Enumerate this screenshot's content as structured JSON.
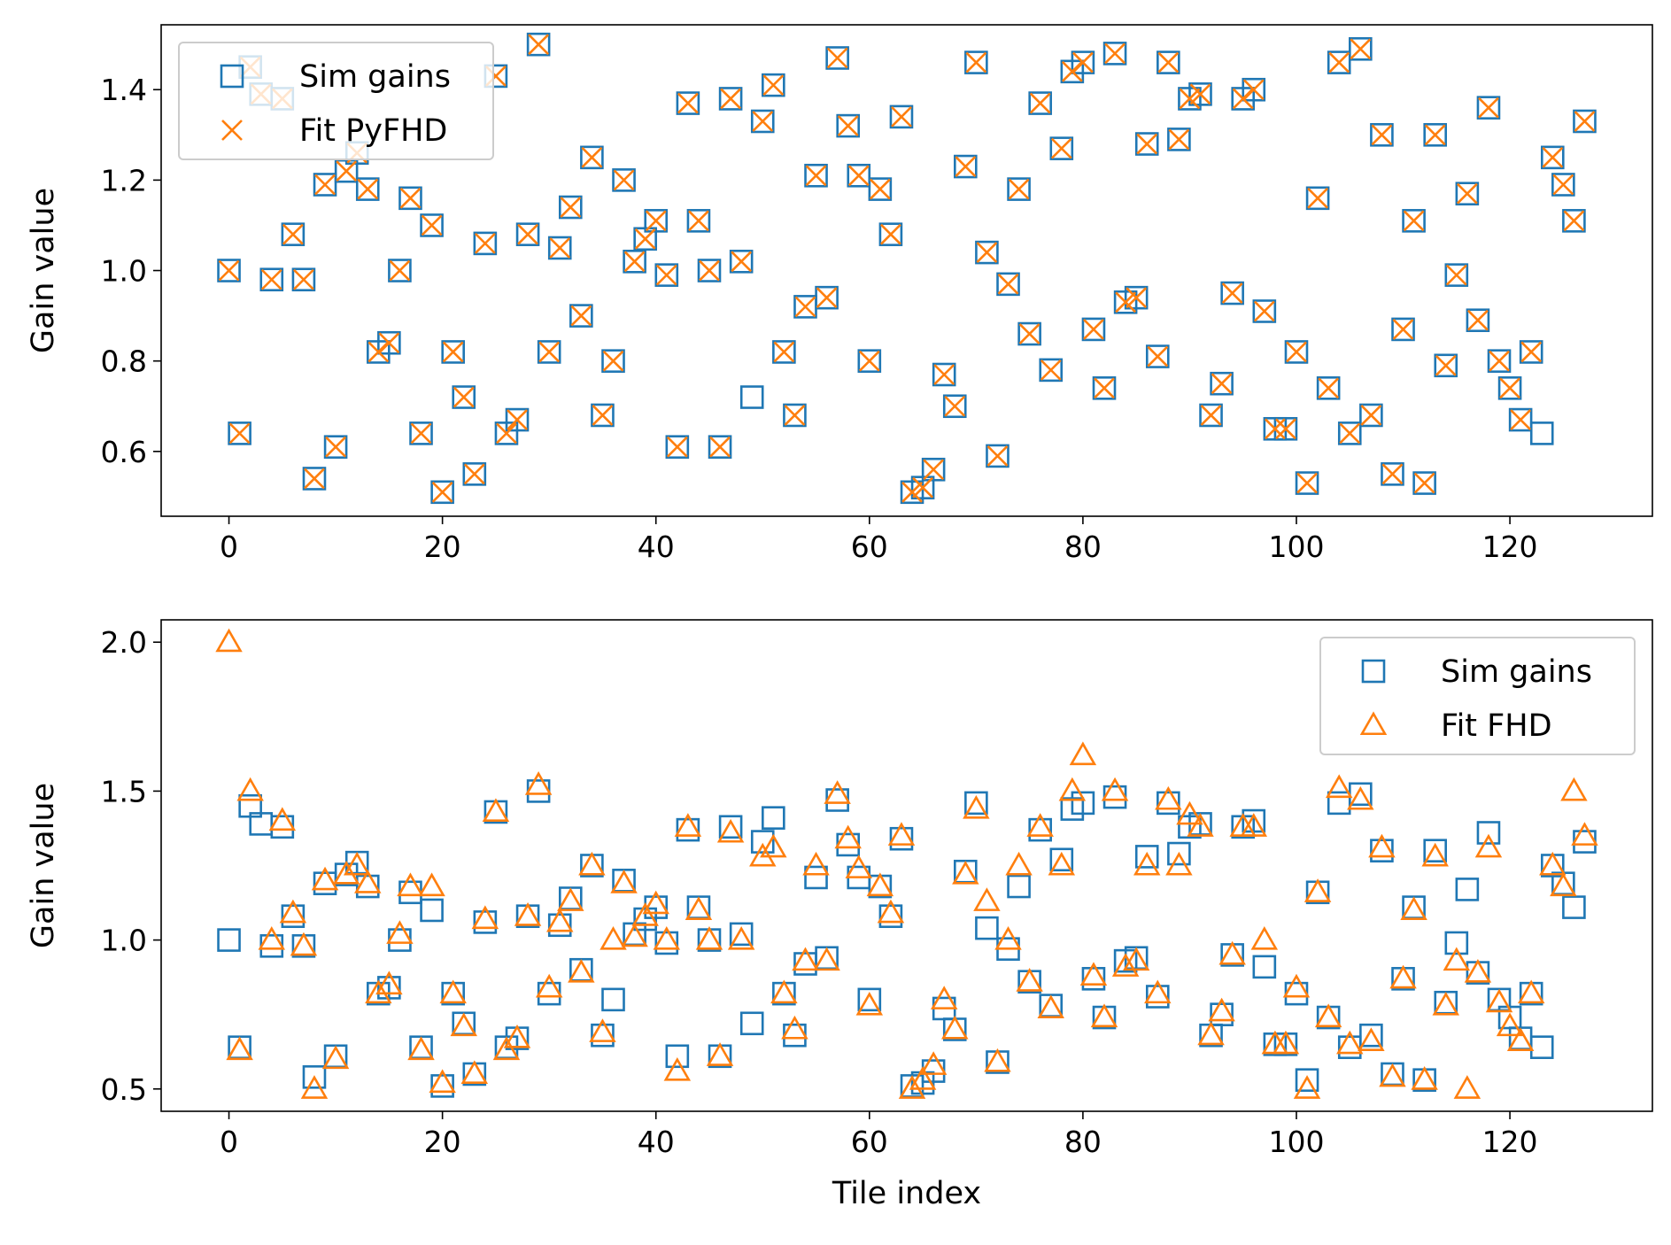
{
  "colors": {
    "sim": "#1f77b4",
    "fit": "#ff7f0e",
    "axis": "#000000",
    "legend_border": "#cccccc"
  },
  "chart_data": [
    {
      "type": "scatter",
      "title": "",
      "xlabel": "",
      "ylabel": "Gain value",
      "xlim": [
        -6.35,
        133.35
      ],
      "ylim": [
        0.4567,
        1.5434
      ],
      "xticks": [
        0,
        20,
        40,
        60,
        80,
        100,
        120
      ],
      "xtick_labels": [
        "0",
        "20",
        "40",
        "60",
        "80",
        "100",
        "120"
      ],
      "yticks": [
        0.6,
        0.8,
        1.0,
        1.2,
        1.4
      ],
      "ytick_labels": [
        "0.6",
        "0.8",
        "1.0",
        "1.2",
        "1.4"
      ],
      "legend_position": "upper-left",
      "series": [
        {
          "name": "Sim gains",
          "marker": "square",
          "color": "#1f77b4",
          "x": [
            0,
            1,
            2,
            3,
            4,
            5,
            6,
            7,
            8,
            9,
            10,
            11,
            12,
            13,
            14,
            15,
            16,
            17,
            18,
            19,
            20,
            21,
            22,
            23,
            24,
            25,
            26,
            27,
            28,
            29,
            30,
            31,
            32,
            33,
            34,
            35,
            36,
            37,
            38,
            39,
            40,
            41,
            42,
            43,
            44,
            45,
            46,
            47,
            48,
            49,
            50,
            51,
            52,
            53,
            54,
            55,
            56,
            57,
            58,
            59,
            60,
            61,
            62,
            63,
            64,
            65,
            66,
            67,
            68,
            69,
            70,
            71,
            72,
            73,
            74,
            75,
            76,
            77,
            78,
            79,
            80,
            81,
            82,
            83,
            84,
            85,
            86,
            87,
            88,
            89,
            90,
            91,
            92,
            93,
            94,
            95,
            96,
            97,
            98,
            99,
            100,
            101,
            102,
            103,
            104,
            105,
            106,
            107,
            108,
            109,
            110,
            111,
            112,
            113,
            114,
            115,
            116,
            117,
            118,
            119,
            120,
            121,
            122,
            123,
            124,
            125,
            126,
            127
          ],
          "y": [
            1.0,
            0.64,
            1.45,
            1.39,
            0.98,
            1.38,
            1.08,
            0.98,
            0.54,
            1.19,
            0.61,
            1.22,
            1.26,
            1.18,
            0.82,
            0.84,
            1.0,
            1.16,
            0.64,
            1.1,
            0.51,
            0.82,
            0.72,
            0.55,
            1.06,
            1.43,
            0.64,
            0.67,
            1.08,
            1.5,
            0.82,
            1.05,
            1.14,
            0.9,
            1.25,
            0.68,
            0.8,
            1.2,
            1.02,
            1.07,
            1.11,
            0.99,
            0.61,
            1.37,
            1.11,
            1.0,
            0.61,
            1.38,
            1.02,
            0.72,
            1.33,
            1.41,
            0.82,
            0.68,
            0.92,
            1.21,
            0.94,
            1.47,
            1.32,
            1.21,
            0.8,
            1.18,
            1.08,
            1.34,
            0.51,
            0.52,
            0.56,
            0.77,
            0.7,
            1.23,
            1.46,
            1.04,
            0.59,
            0.97,
            1.18,
            0.86,
            1.37,
            0.78,
            1.27,
            1.44,
            1.46,
            0.87,
            0.74,
            1.48,
            0.93,
            0.94,
            1.28,
            0.81,
            1.46,
            1.29,
            1.38,
            1.39,
            0.68,
            0.75,
            0.95,
            1.38,
            1.4,
            0.91,
            0.65,
            0.65,
            0.82,
            0.53,
            1.16,
            0.74,
            1.46,
            0.64,
            1.49,
            0.68,
            1.3,
            0.55,
            0.87,
            1.11,
            0.53,
            1.3,
            0.79,
            0.99,
            1.17,
            0.89,
            1.36,
            0.8,
            0.74,
            0.67,
            0.82,
            0.64,
            1.25,
            1.19,
            1.11,
            1.33
          ]
        },
        {
          "name": "Fit PyFHD",
          "marker": "x",
          "color": "#ff7f0e",
          "x": [
            0,
            1,
            2,
            3,
            4,
            5,
            6,
            7,
            8,
            9,
            10,
            11,
            12,
            13,
            14,
            15,
            16,
            17,
            18,
            19,
            20,
            21,
            22,
            23,
            24,
            25,
            26,
            27,
            28,
            29,
            30,
            31,
            32,
            33,
            34,
            35,
            36,
            37,
            38,
            39,
            40,
            41,
            42,
            43,
            44,
            45,
            46,
            47,
            48,
            50,
            51,
            52,
            53,
            54,
            55,
            56,
            57,
            58,
            59,
            60,
            61,
            62,
            63,
            64,
            65,
            66,
            67,
            68,
            69,
            70,
            71,
            72,
            73,
            74,
            75,
            76,
            77,
            78,
            79,
            80,
            81,
            82,
            83,
            84,
            85,
            86,
            87,
            88,
            89,
            90,
            91,
            92,
            93,
            94,
            95,
            96,
            97,
            98,
            99,
            100,
            101,
            102,
            103,
            104,
            105,
            106,
            107,
            108,
            109,
            110,
            111,
            112,
            113,
            114,
            115,
            116,
            117,
            118,
            119,
            120,
            121,
            122,
            124,
            125,
            126,
            127
          ],
          "y": [
            1.0,
            0.64,
            1.45,
            1.39,
            0.98,
            1.38,
            1.08,
            0.98,
            0.54,
            1.19,
            0.61,
            1.22,
            1.26,
            1.18,
            0.82,
            0.84,
            1.0,
            1.16,
            0.64,
            1.1,
            0.51,
            0.82,
            0.72,
            0.55,
            1.06,
            1.43,
            0.64,
            0.67,
            1.08,
            1.5,
            0.82,
            1.05,
            1.14,
            0.9,
            1.25,
            0.68,
            0.8,
            1.2,
            1.02,
            1.07,
            1.11,
            0.99,
            0.61,
            1.37,
            1.11,
            1.0,
            0.61,
            1.38,
            1.02,
            1.33,
            1.41,
            0.82,
            0.68,
            0.92,
            1.21,
            0.94,
            1.47,
            1.32,
            1.21,
            0.8,
            1.18,
            1.08,
            1.34,
            0.51,
            0.52,
            0.56,
            0.77,
            0.7,
            1.23,
            1.46,
            1.04,
            0.59,
            0.97,
            1.18,
            0.86,
            1.37,
            0.78,
            1.27,
            1.44,
            1.46,
            0.87,
            0.74,
            1.48,
            0.93,
            0.94,
            1.28,
            0.81,
            1.46,
            1.29,
            1.38,
            1.39,
            0.68,
            0.75,
            0.95,
            1.38,
            1.4,
            0.91,
            0.65,
            0.65,
            0.82,
            0.53,
            1.16,
            0.74,
            1.46,
            0.64,
            1.49,
            0.68,
            1.3,
            0.55,
            0.87,
            1.11,
            0.53,
            1.3,
            0.79,
            0.99,
            1.17,
            0.89,
            1.36,
            0.8,
            0.74,
            0.67,
            0.82,
            1.25,
            1.19,
            1.11,
            1.33
          ]
        }
      ]
    },
    {
      "type": "scatter",
      "title": "",
      "xlabel": "Tile index",
      "ylabel": "Gain value",
      "xlim": [
        -6.35,
        133.35
      ],
      "ylim": [
        0.425,
        2.075
      ],
      "xticks": [
        0,
        20,
        40,
        60,
        80,
        100,
        120
      ],
      "xtick_labels": [
        "0",
        "20",
        "40",
        "60",
        "80",
        "100",
        "120"
      ],
      "yticks": [
        0.5,
        1.0,
        1.5,
        2.0
      ],
      "ytick_labels": [
        "0.5",
        "1.0",
        "1.5",
        "2.0"
      ],
      "legend_position": "upper-right",
      "series": [
        {
          "name": "Sim gains",
          "marker": "square",
          "color": "#1f77b4",
          "x": [
            0,
            1,
            2,
            3,
            4,
            5,
            6,
            7,
            8,
            9,
            10,
            11,
            12,
            13,
            14,
            15,
            16,
            17,
            18,
            19,
            20,
            21,
            22,
            23,
            24,
            25,
            26,
            27,
            28,
            29,
            30,
            31,
            32,
            33,
            34,
            35,
            36,
            37,
            38,
            39,
            40,
            41,
            42,
            43,
            44,
            45,
            46,
            47,
            48,
            49,
            50,
            51,
            52,
            53,
            54,
            55,
            56,
            57,
            58,
            59,
            60,
            61,
            62,
            63,
            64,
            65,
            66,
            67,
            68,
            69,
            70,
            71,
            72,
            73,
            74,
            75,
            76,
            77,
            78,
            79,
            80,
            81,
            82,
            83,
            84,
            85,
            86,
            87,
            88,
            89,
            90,
            91,
            92,
            93,
            94,
            95,
            96,
            97,
            98,
            99,
            100,
            101,
            102,
            103,
            104,
            105,
            106,
            107,
            108,
            109,
            110,
            111,
            112,
            113,
            114,
            115,
            116,
            117,
            118,
            119,
            120,
            121,
            122,
            123,
            124,
            125,
            126,
            127
          ],
          "y": [
            1.0,
            0.64,
            1.45,
            1.39,
            0.98,
            1.38,
            1.08,
            0.98,
            0.54,
            1.19,
            0.61,
            1.22,
            1.26,
            1.18,
            0.82,
            0.84,
            1.0,
            1.16,
            0.64,
            1.1,
            0.51,
            0.82,
            0.72,
            0.55,
            1.06,
            1.43,
            0.64,
            0.67,
            1.08,
            1.5,
            0.82,
            1.05,
            1.14,
            0.9,
            1.25,
            0.68,
            0.8,
            1.2,
            1.02,
            1.07,
            1.11,
            0.99,
            0.61,
            1.37,
            1.11,
            1.0,
            0.61,
            1.38,
            1.02,
            0.72,
            1.33,
            1.41,
            0.82,
            0.68,
            0.92,
            1.21,
            0.94,
            1.47,
            1.32,
            1.21,
            0.8,
            1.18,
            1.08,
            1.34,
            0.51,
            0.52,
            0.56,
            0.77,
            0.7,
            1.23,
            1.46,
            1.04,
            0.59,
            0.97,
            1.18,
            0.86,
            1.37,
            0.78,
            1.27,
            1.44,
            1.46,
            0.87,
            0.74,
            1.48,
            0.93,
            0.94,
            1.28,
            0.81,
            1.46,
            1.29,
            1.38,
            1.39,
            0.68,
            0.75,
            0.95,
            1.38,
            1.4,
            0.91,
            0.65,
            0.65,
            0.82,
            0.53,
            1.16,
            0.74,
            1.46,
            0.64,
            1.49,
            0.68,
            1.3,
            0.55,
            0.87,
            1.11,
            0.53,
            1.3,
            0.79,
            0.99,
            1.17,
            0.89,
            1.36,
            0.8,
            0.74,
            0.67,
            0.82,
            0.64,
            1.25,
            1.19,
            1.11,
            1.33
          ]
        },
        {
          "name": "Fit FHD",
          "marker": "triangle",
          "color": "#ff7f0e",
          "x": [
            0,
            1,
            2,
            4,
            5,
            6,
            7,
            8,
            9,
            10,
            11,
            12,
            13,
            14,
            15,
            16,
            17,
            18,
            19,
            20,
            21,
            22,
            23,
            24,
            25,
            26,
            27,
            28,
            29,
            30,
            31,
            32,
            33,
            34,
            35,
            36,
            37,
            38,
            39,
            40,
            41,
            42,
            43,
            44,
            45,
            46,
            47,
            48,
            50,
            51,
            52,
            53,
            54,
            55,
            56,
            57,
            58,
            59,
            60,
            61,
            62,
            63,
            64,
            65,
            66,
            67,
            68,
            69,
            70,
            71,
            72,
            73,
            74,
            75,
            76,
            77,
            78,
            79,
            80,
            81,
            82,
            83,
            84,
            85,
            86,
            87,
            88,
            89,
            90,
            91,
            92,
            93,
            94,
            95,
            96,
            97,
            98,
            99,
            100,
            101,
            102,
            103,
            104,
            105,
            106,
            107,
            108,
            109,
            110,
            111,
            112,
            113,
            114,
            115,
            116,
            117,
            118,
            119,
            120,
            121,
            122,
            124,
            125,
            126,
            127
          ],
          "y": [
            2.0,
            0.63,
            1.5,
            1.0,
            1.4,
            1.09,
            0.98,
            0.5,
            1.2,
            0.6,
            1.22,
            1.25,
            1.19,
            0.82,
            0.85,
            1.02,
            1.18,
            0.63,
            1.18,
            0.52,
            0.82,
            0.71,
            0.55,
            1.07,
            1.43,
            0.63,
            0.67,
            1.08,
            1.52,
            0.84,
            1.06,
            1.13,
            0.89,
            1.25,
            0.69,
            1.0,
            1.19,
            1.01,
            1.08,
            1.12,
            1.0,
            0.56,
            1.38,
            1.1,
            1.0,
            0.61,
            1.36,
            1.0,
            1.28,
            1.31,
            0.82,
            0.7,
            0.93,
            1.25,
            0.93,
            1.49,
            1.34,
            1.24,
            0.78,
            1.18,
            1.09,
            1.35,
            0.5,
            0.53,
            0.58,
            0.8,
            0.7,
            1.22,
            1.44,
            1.13,
            0.59,
            1.0,
            1.25,
            0.86,
            1.38,
            0.77,
            1.25,
            1.5,
            1.62,
            0.88,
            0.74,
            1.5,
            0.91,
            0.93,
            1.25,
            0.82,
            1.47,
            1.25,
            1.42,
            1.38,
            0.68,
            0.76,
            0.95,
            1.38,
            1.38,
            1.0,
            0.65,
            0.65,
            0.84,
            0.5,
            1.16,
            0.74,
            1.51,
            0.65,
            1.47,
            0.66,
            1.31,
            0.54,
            0.87,
            1.1,
            0.53,
            1.28,
            0.78,
            0.93,
            0.5,
            0.89,
            1.31,
            0.79,
            0.71,
            0.66,
            0.82,
            1.25,
            1.18,
            1.5,
            1.35
          ]
        }
      ]
    }
  ]
}
